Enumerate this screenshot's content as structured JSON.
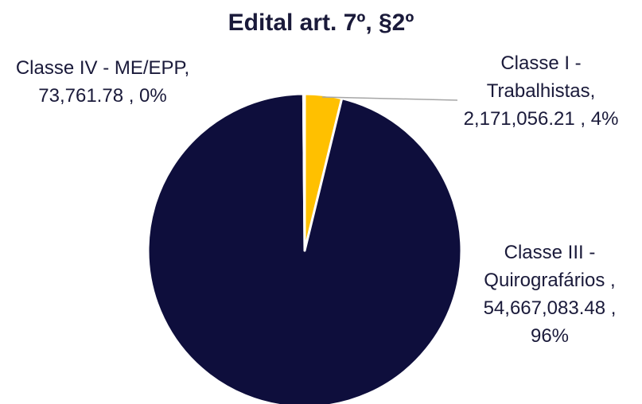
{
  "chart_data": {
    "type": "pie",
    "title": "Edital art. 7º, §2º",
    "categories": [
      "Classe I - Trabalhistas,",
      "Classe III - Quirografários ,",
      "Classe IV - ME/EPP,"
    ],
    "values": [
      2171056.21,
      54667083.48,
      73761.78
    ],
    "value_labels": [
      "2,171,056.21 ,",
      "54,667,083.48 ,",
      "73,761.78 ,"
    ],
    "percentages": [
      4,
      96,
      0
    ],
    "percentage_labels": [
      "4%",
      "96%",
      "0%"
    ],
    "colors": [
      "#ffc000",
      "#0e0e3c",
      "#7f7f7f"
    ]
  }
}
